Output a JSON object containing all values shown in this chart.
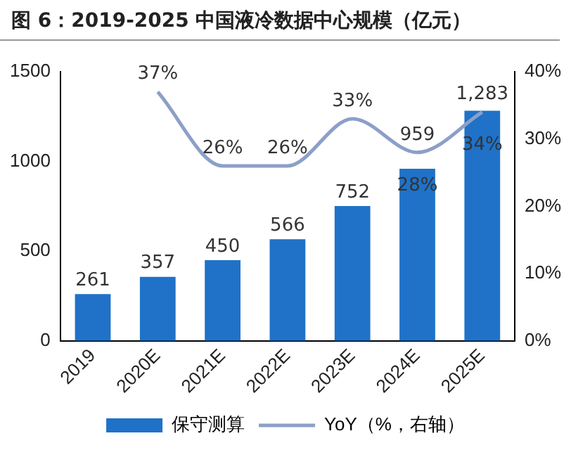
{
  "chart_data": {
    "type": "bar",
    "title": "图 6：2019-2025 中国液冷数据中心规模（亿元）",
    "categories": [
      "2019",
      "2020E",
      "2021E",
      "2022E",
      "2023E",
      "2024E",
      "2025E"
    ],
    "series": [
      {
        "name": "保守测算",
        "color": "#1f72c8",
        "values": [
          261,
          357,
          450,
          566,
          752,
          959,
          1283
        ],
        "value_labels": [
          "261",
          "357",
          "450",
          "566",
          "752",
          "959",
          "1,283"
        ]
      },
      {
        "name": "YoY（%，右轴）",
        "type": "line",
        "axis": "y2",
        "color": "#8c9fc9",
        "values": [
          null,
          37,
          26,
          26,
          33,
          28,
          34
        ],
        "value_labels": [
          null,
          "37%",
          "26%",
          "26%",
          "33%",
          "28%",
          "34%"
        ]
      }
    ],
    "ylim": [
      0,
      1500
    ],
    "yticks": [
      0,
      500,
      1000,
      1500
    ],
    "y2lim": [
      0,
      40
    ],
    "y2ticks": [
      {
        "value": 0,
        "label": "0%"
      },
      {
        "value": 10,
        "label": "10%"
      },
      {
        "value": 20,
        "label": "20%"
      },
      {
        "value": 30,
        "label": "30%"
      },
      {
        "value": 40,
        "label": "40%"
      }
    ],
    "grid": false,
    "legend": "bottom",
    "marker": "none",
    "line_style": "solid"
  }
}
